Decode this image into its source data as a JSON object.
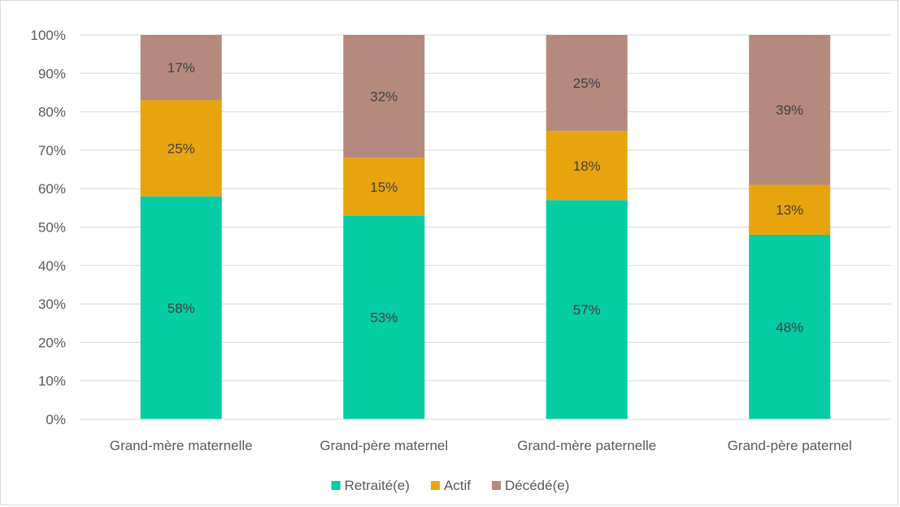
{
  "chart_data": {
    "type": "bar",
    "stacked": true,
    "categories": [
      "Grand-mère maternelle",
      "Grand-père maternel",
      "Grand-mère paternelle",
      "Grand-père paternel"
    ],
    "series": [
      {
        "name": "Retraité(e)",
        "values": [
          58,
          53,
          57,
          48
        ],
        "labels": [
          "58%",
          "53%",
          "57%",
          "48%"
        ],
        "color": "#04cca4"
      },
      {
        "name": "Actif",
        "values": [
          25,
          15,
          18,
          13
        ],
        "labels": [
          "25%",
          "15%",
          "18%",
          "13%"
        ],
        "color": "#e8a40c"
      },
      {
        "name": "Décédé(e)",
        "values": [
          17,
          32,
          25,
          39
        ],
        "labels": [
          "17%",
          "32%",
          "25%",
          "39%"
        ],
        "color": "#b58a7c"
      }
    ],
    "ylim": [
      0,
      100
    ],
    "yticks": [
      "0%",
      "10%",
      "20%",
      "30%",
      "40%",
      "50%",
      "60%",
      "70%",
      "80%",
      "90%",
      "100%"
    ],
    "grid": true,
    "legend_position": "bottom"
  }
}
